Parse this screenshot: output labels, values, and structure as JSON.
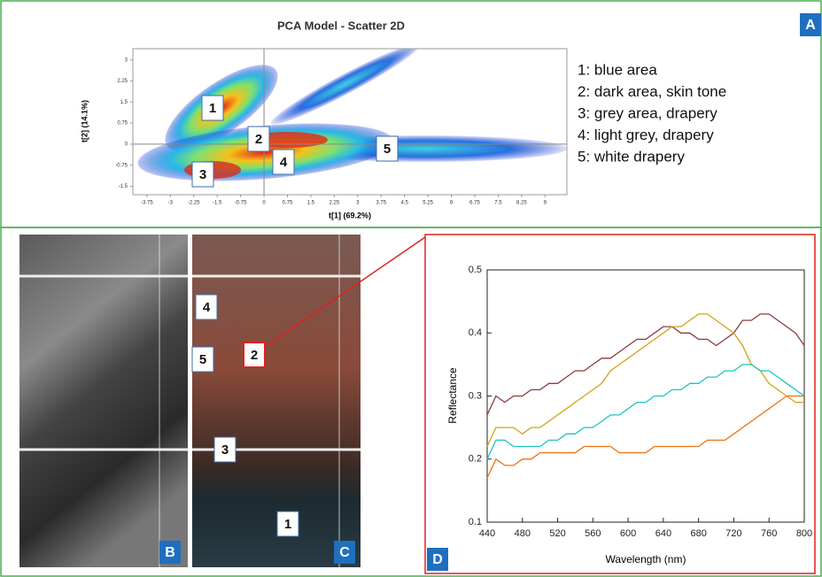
{
  "panel_letters": [
    "A",
    "B",
    "C",
    "D"
  ],
  "image_labels": [
    "4",
    "5",
    "2",
    "3",
    "1"
  ],
  "chart_data": [
    {
      "type": "scatter",
      "title": "PCA Model - Scatter 2D",
      "x_label": "t[1] (69.2%)",
      "y_label": "t[2] (14.1%)",
      "xlim": [
        -4.2,
        9.7
      ],
      "ylim": [
        -1.8,
        3.4
      ],
      "xticks": [
        -3.75,
        -3,
        -2.25,
        -1.5,
        -0.75,
        0,
        0.75,
        1.5,
        2.25,
        3,
        3.75,
        4.5,
        5.25,
        6,
        6.75,
        7.5,
        8.25,
        9
      ],
      "yticks": [
        -1.5,
        -0.75,
        0,
        0.75,
        1.5,
        2.25,
        3
      ],
      "annotations": [
        "1",
        "2",
        "3",
        "4",
        "5"
      ],
      "legend_text": [
        "1: blue area",
        "2: dark area, skin tone",
        "3: grey area, drapery",
        "4: light grey, drapery",
        "5: white drapery"
      ]
    },
    {
      "type": "line",
      "x_label": "Wavelength (nm)",
      "y_label": "Reflectance",
      "xlim": [
        440,
        800
      ],
      "ylim": [
        0.1,
        0.5
      ],
      "xticks": [
        440,
        480,
        520,
        560,
        600,
        640,
        680,
        720,
        760,
        800
      ],
      "yticks": [
        0.1,
        0.2,
        0.3,
        0.4,
        0.5
      ],
      "x": [
        440,
        450,
        460,
        470,
        480,
        490,
        500,
        510,
        520,
        530,
        540,
        550,
        560,
        570,
        580,
        590,
        600,
        610,
        620,
        630,
        640,
        650,
        660,
        670,
        680,
        690,
        700,
        710,
        720,
        730,
        740,
        750,
        760,
        770,
        780,
        790,
        800
      ],
      "series": [
        {
          "color": "#8b3a3a",
          "values": [
            0.27,
            0.3,
            0.29,
            0.3,
            0.3,
            0.31,
            0.31,
            0.32,
            0.32,
            0.33,
            0.34,
            0.34,
            0.35,
            0.36,
            0.36,
            0.37,
            0.38,
            0.39,
            0.39,
            0.4,
            0.41,
            0.41,
            0.4,
            0.4,
            0.39,
            0.39,
            0.38,
            0.39,
            0.4,
            0.42,
            0.42,
            0.43,
            0.43,
            0.42,
            0.41,
            0.4,
            0.38
          ]
        },
        {
          "color": "#d4a017",
          "values": [
            0.22,
            0.25,
            0.25,
            0.25,
            0.24,
            0.25,
            0.25,
            0.26,
            0.27,
            0.28,
            0.29,
            0.3,
            0.31,
            0.32,
            0.34,
            0.35,
            0.36,
            0.37,
            0.38,
            0.39,
            0.4,
            0.41,
            0.41,
            0.42,
            0.43,
            0.43,
            0.42,
            0.41,
            0.4,
            0.38,
            0.35,
            0.34,
            0.32,
            0.31,
            0.3,
            0.29,
            0.29
          ]
        },
        {
          "color": "#1cc4c4",
          "values": [
            0.2,
            0.23,
            0.23,
            0.22,
            0.22,
            0.22,
            0.22,
            0.23,
            0.23,
            0.24,
            0.24,
            0.25,
            0.25,
            0.26,
            0.27,
            0.27,
            0.28,
            0.29,
            0.29,
            0.3,
            0.3,
            0.31,
            0.31,
            0.32,
            0.32,
            0.33,
            0.33,
            0.34,
            0.34,
            0.35,
            0.35,
            0.34,
            0.34,
            0.33,
            0.32,
            0.31,
            0.3
          ]
        },
        {
          "color": "#f07010",
          "values": [
            0.17,
            0.2,
            0.19,
            0.19,
            0.2,
            0.2,
            0.21,
            0.21,
            0.21,
            0.21,
            0.21,
            0.22,
            0.22,
            0.22,
            0.22,
            0.21,
            0.21,
            0.21,
            0.21,
            0.22,
            0.22,
            0.22,
            0.22,
            0.22,
            0.22,
            0.23,
            0.23,
            0.23,
            0.24,
            0.25,
            0.26,
            0.27,
            0.28,
            0.29,
            0.3,
            0.3,
            0.3
          ]
        }
      ]
    }
  ]
}
